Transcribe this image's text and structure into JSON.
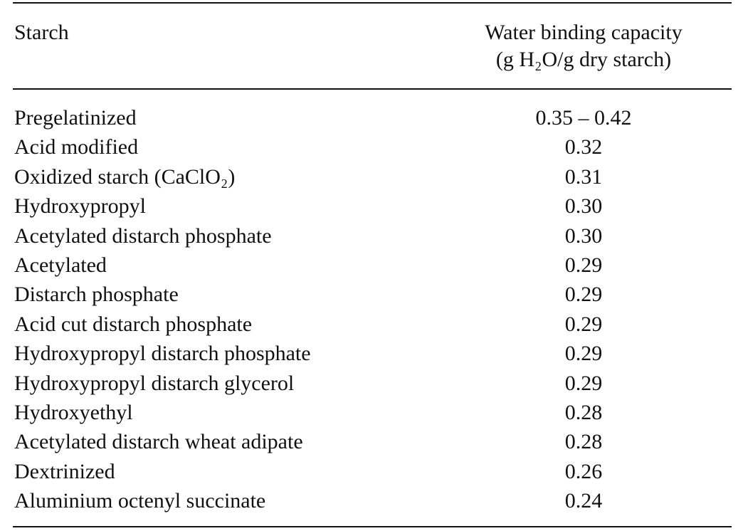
{
  "table": {
    "header": [
      "Starch",
      [
        "Water binding capacity",
        "(g H₂O/g dry starch)"
      ]
    ],
    "rows": [
      [
        "Pregelatinized",
        "0.35 – 0.42"
      ],
      [
        "Acid modified",
        "0.32"
      ],
      [
        "Oxidized starch (CaClO₂)",
        "0.31"
      ],
      [
        "Hydroxypropyl",
        "0.30"
      ],
      [
        "Acetylated distarch phosphate",
        "0.30"
      ],
      [
        "Acetylated",
        "0.29"
      ],
      [
        "Distarch phosphate",
        "0.29"
      ],
      [
        "Acid cut distarch phosphate",
        "0.29"
      ],
      [
        "Hydroxypropyl distarch phosphate",
        "0.29"
      ],
      [
        "Hydroxypropyl distarch glycerol",
        "0.29"
      ],
      [
        "Hydroxyethyl",
        "0.28"
      ],
      [
        "Acetylated distarch wheat adipate",
        "0.28"
      ],
      [
        "Dextrinized",
        "0.26"
      ],
      [
        "Aluminium octenyl succinate",
        "0.24"
      ]
    ]
  }
}
